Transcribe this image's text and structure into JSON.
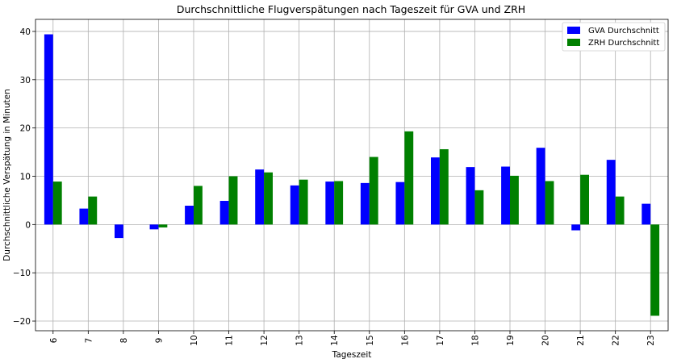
{
  "chart_data": {
    "type": "bar",
    "title": "Durchschnittliche Flugverspätungen nach Tageszeit für GVA und ZRH",
    "xlabel": "Tageszeit",
    "ylabel": "Durchschnittliche Verspätung in Minuten",
    "categories": [
      "6",
      "7",
      "8",
      "9",
      "10",
      "11",
      "12",
      "13",
      "14",
      "15",
      "16",
      "17",
      "18",
      "19",
      "20",
      "21",
      "22",
      "23"
    ],
    "series": [
      {
        "name": "GVA Durchschnitt",
        "color": "#0000ff",
        "values": [
          39.4,
          3.3,
          -2.8,
          -1.0,
          3.9,
          4.9,
          11.4,
          8.1,
          8.9,
          8.6,
          8.8,
          13.9,
          11.9,
          12.0,
          15.9,
          -1.2,
          13.4,
          4.3
        ]
      },
      {
        "name": "ZRH Durchschnitt",
        "color": "#008000",
        "values": [
          8.9,
          5.8,
          0.0,
          -0.6,
          8.0,
          10.0,
          10.8,
          9.3,
          9.0,
          14.0,
          19.3,
          15.6,
          7.1,
          10.1,
          9.0,
          10.3,
          5.8,
          -18.9
        ]
      }
    ],
    "ylim": [
      -22,
      42.5
    ],
    "yticks": [
      -20,
      -10,
      0,
      10,
      20,
      30,
      40
    ],
    "yticklabels": [
      "−20",
      "−10",
      "0",
      "10",
      "20",
      "30",
      "40"
    ],
    "grid": true,
    "legend_position": "top-right"
  }
}
